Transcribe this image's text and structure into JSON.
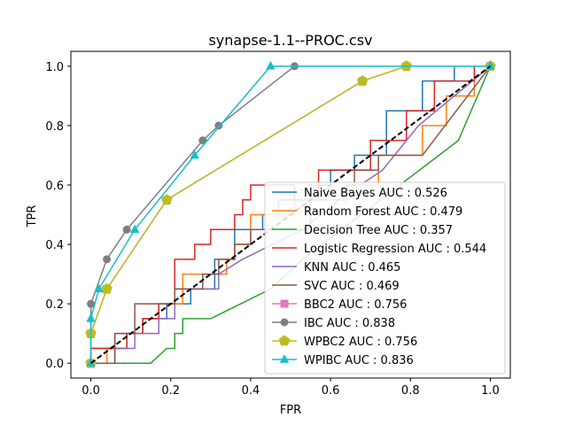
{
  "chart_data": {
    "type": "line",
    "title": "synapse-1.1--PROC.csv",
    "xlabel": "FPR",
    "ylabel": "TPR",
    "xlim": [
      -0.05,
      1.05
    ],
    "ylim": [
      -0.05,
      1.05
    ],
    "xticks": [
      "0.0",
      "0.2",
      "0.4",
      "0.6",
      "0.8",
      "1.0"
    ],
    "yticks": [
      "0.0",
      "0.2",
      "0.4",
      "0.6",
      "0.8",
      "1.0"
    ],
    "legend_position": "lower-right",
    "grid": false,
    "diagonal": {
      "x": [
        0,
        1
      ],
      "y": [
        0,
        1
      ],
      "color": "#000000",
      "style": "dashed"
    },
    "series": [
      {
        "name": "Naive Bayes AUC : 0.526",
        "color": "#1f77b4",
        "marker": "none",
        "x": [
          0,
          0,
          0.06,
          0.06,
          0.13,
          0.13,
          0.19,
          0.19,
          0.25,
          0.25,
          0.31,
          0.31,
          0.36,
          0.36,
          0.43,
          0.43,
          0.47,
          0.47,
          0.55,
          0.55,
          0.6,
          0.6,
          0.66,
          0.66,
          0.74,
          0.74,
          0.83,
          0.83,
          0.89,
          0.89,
          0.91,
          0.91,
          1
        ],
        "y": [
          0,
          0.05,
          0.05,
          0.1,
          0.1,
          0.15,
          0.15,
          0.2,
          0.2,
          0.25,
          0.25,
          0.35,
          0.35,
          0.45,
          0.45,
          0.5,
          0.5,
          0.55,
          0.55,
          0.6,
          0.6,
          0.65,
          0.65,
          0.7,
          0.7,
          0.85,
          0.85,
          0.95,
          0.95,
          0.95,
          0.95,
          1,
          1
        ]
      },
      {
        "name": "Random Forest AUC : 0.479",
        "color": "#ff7f0e",
        "marker": "none",
        "x": [
          0,
          0.04,
          0.04,
          0.09,
          0.09,
          0.13,
          0.13,
          0.17,
          0.17,
          0.23,
          0.23,
          0.34,
          0.34,
          0.36,
          0.36,
          0.4,
          0.4,
          0.51,
          0.51,
          0.64,
          0.64,
          0.72,
          0.72,
          0.83,
          0.83,
          0.89,
          0.89,
          0.96,
          0.96,
          1
        ],
        "y": [
          0,
          0,
          0.05,
          0.05,
          0.1,
          0.1,
          0.15,
          0.15,
          0.2,
          0.2,
          0.3,
          0.3,
          0.35,
          0.35,
          0.4,
          0.4,
          0.5,
          0.5,
          0.55,
          0.55,
          0.6,
          0.6,
          0.7,
          0.7,
          0.8,
          0.8,
          0.9,
          0.9,
          1,
          1
        ]
      },
      {
        "name": "Decision Tree AUC : 0.357",
        "color": "#2ca02c",
        "marker": "none",
        "x": [
          0,
          0.15,
          0.19,
          0.19,
          0.21,
          0.21,
          0.23,
          0.23,
          0.3,
          0.45,
          0.53,
          0.92,
          1
        ],
        "y": [
          0,
          0,
          0.05,
          0.05,
          0.05,
          0.1,
          0.1,
          0.15,
          0.15,
          0.25,
          0.35,
          0.75,
          1
        ]
      },
      {
        "name": "Logistic Regression AUC : 0.544",
        "color": "#d62728",
        "marker": "none",
        "x": [
          0,
          0,
          0.09,
          0.09,
          0.13,
          0.13,
          0.17,
          0.17,
          0.21,
          0.21,
          0.26,
          0.26,
          0.3,
          0.3,
          0.36,
          0.36,
          0.38,
          0.38,
          0.4,
          0.4,
          0.43,
          0.43,
          0.51,
          0.51,
          0.57,
          0.57,
          0.62,
          0.62,
          0.66,
          0.66,
          0.7,
          0.7,
          0.79,
          0.79,
          0.86,
          0.86,
          0.91,
          0.91,
          0.96,
          0.96,
          1
        ],
        "y": [
          0,
          0.05,
          0.05,
          0.1,
          0.1,
          0.15,
          0.15,
          0.2,
          0.2,
          0.35,
          0.35,
          0.4,
          0.4,
          0.45,
          0.45,
          0.5,
          0.5,
          0.55,
          0.55,
          0.6,
          0.6,
          0.6,
          0.6,
          0.55,
          0.55,
          0.65,
          0.65,
          0.65,
          0.65,
          0.65,
          0.65,
          0.75,
          0.75,
          0.85,
          0.85,
          0.95,
          0.95,
          0.95,
          0.95,
          1,
          1
        ]
      },
      {
        "name": "KNN AUC : 0.465",
        "color": "#9467bd",
        "marker": "none",
        "x": [
          0,
          0.06,
          0.06,
          0.11,
          0.11,
          0.17,
          0.17,
          0.21,
          0.21,
          0.32,
          0.32,
          0.38,
          0.53,
          0.62,
          0.73,
          0.82,
          1
        ],
        "y": [
          0,
          0,
          0.05,
          0.05,
          0.1,
          0.1,
          0.15,
          0.15,
          0.25,
          0.25,
          0.3,
          0.35,
          0.45,
          0.55,
          0.65,
          0.8,
          1
        ]
      },
      {
        "name": "SVC AUC : 0.469",
        "color": "#8c564b",
        "marker": "none",
        "x": [
          0,
          0.06,
          0.06,
          0.11,
          0.11,
          0.21,
          0.21,
          0.28,
          0.28,
          0.32,
          0.32,
          0.36,
          0.36,
          0.4,
          0.4,
          0.55,
          0.55,
          0.64,
          0.64,
          0.66,
          0.66,
          0.72,
          0.72,
          0.83,
          1
        ],
        "y": [
          0,
          0,
          0.1,
          0.1,
          0.2,
          0.2,
          0.25,
          0.25,
          0.3,
          0.3,
          0.35,
          0.35,
          0.4,
          0.4,
          0.45,
          0.45,
          0.55,
          0.55,
          0.6,
          0.6,
          0.65,
          0.65,
          0.7,
          0.7,
          1
        ]
      },
      {
        "name": "BBC2 AUC : 0.756",
        "color": "#e377c2",
        "marker": "square",
        "x": [
          0,
          0,
          0.04,
          0.19,
          0.68,
          0.79,
          1
        ],
        "y": [
          0,
          0.1,
          0.25,
          0.55,
          0.95,
          1,
          1
        ]
      },
      {
        "name": "IBC AUC : 0.838",
        "color": "#7f7f7f",
        "marker": "circle",
        "x": [
          0,
          0,
          0.04,
          0.09,
          0.28,
          0.32,
          0.51,
          1
        ],
        "y": [
          0,
          0.2,
          0.35,
          0.45,
          0.75,
          0.8,
          1,
          1
        ]
      },
      {
        "name": "WPBC2 AUC : 0.756",
        "color": "#bcbd22",
        "marker": "pentagon",
        "x": [
          0,
          0,
          0.04,
          0.19,
          0.68,
          0.79,
          1
        ],
        "y": [
          0,
          0.1,
          0.25,
          0.55,
          0.95,
          1,
          1
        ]
      },
      {
        "name": "WPIBC AUC : 0.836",
        "color": "#17becf",
        "marker": "triangle",
        "x": [
          0,
          0,
          0.02,
          0.11,
          0.26,
          0.45,
          1
        ],
        "y": [
          0,
          0.15,
          0.25,
          0.45,
          0.7,
          1,
          1
        ]
      }
    ]
  }
}
